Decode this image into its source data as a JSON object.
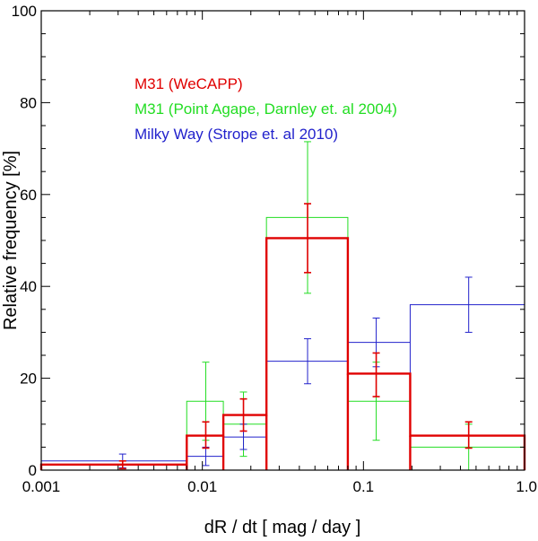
{
  "chart_data": {
    "type": "histogram-step",
    "xscale": "log",
    "xlim": [
      0.001,
      1.0
    ],
    "ylim": [
      0,
      100
    ],
    "xlabel": "dR / dt [ mag / day ]",
    "ylabel": "Relative frequency [%]",
    "x_ticks": [
      {
        "value": 0.001,
        "label": "0.001"
      },
      {
        "value": 0.01,
        "label": "0.01"
      },
      {
        "value": 0.1,
        "label": "0.1"
      },
      {
        "value": 1.0,
        "label": "1.0"
      }
    ],
    "y_ticks": [
      {
        "value": 0,
        "label": "0"
      },
      {
        "value": 20,
        "label": "20"
      },
      {
        "value": 40,
        "label": "40"
      },
      {
        "value": 60,
        "label": "60"
      },
      {
        "value": 80,
        "label": "80"
      },
      {
        "value": 100,
        "label": "100"
      }
    ],
    "series": [
      {
        "name": "M31 (WeCAPP)",
        "label": "M31 (WeCAPP)",
        "color": "#e00000",
        "bins": [
          {
            "lo": 0.001,
            "hi": 0.008,
            "value": 1.2,
            "x": 0.0032,
            "err_lo": 0.3,
            "err_hi": 2.0
          },
          {
            "lo": 0.008,
            "hi": 0.0135,
            "value": 7.5,
            "x": 0.0105,
            "err_lo": 4.8,
            "err_hi": 10.5
          },
          {
            "lo": 0.0135,
            "hi": 0.025,
            "value": 12.0,
            "x": 0.018,
            "err_lo": 8.5,
            "err_hi": 15.5
          },
          {
            "lo": 0.025,
            "hi": 0.08,
            "value": 50.5,
            "x": 0.045,
            "err_lo": 43.0,
            "err_hi": 58.0
          },
          {
            "lo": 0.08,
            "hi": 0.195,
            "value": 21.0,
            "x": 0.12,
            "err_lo": 16.0,
            "err_hi": 25.5
          },
          {
            "lo": 0.195,
            "hi": 1.0,
            "value": 7.5,
            "x": 0.45,
            "err_lo": 4.8,
            "err_hi": 10.5
          }
        ]
      },
      {
        "name": "M31 (Point Agape, Darnley et. al 2004)",
        "label": "M31 (Point Agape, Darnley et. al 2004)",
        "color": "#22dd22",
        "bins": [
          {
            "lo": 0.001,
            "hi": 0.008,
            "value": 1.2,
            "x": 0.0032,
            "err_lo": 0.3,
            "err_hi": 2.0
          },
          {
            "lo": 0.008,
            "hi": 0.0135,
            "value": 15.0,
            "x": 0.0105,
            "err_lo": 6.5,
            "err_hi": 23.5
          },
          {
            "lo": 0.0135,
            "hi": 0.025,
            "value": 10.0,
            "x": 0.018,
            "err_lo": 3.0,
            "err_hi": 17.0
          },
          {
            "lo": 0.025,
            "hi": 0.08,
            "value": 55.0,
            "x": 0.045,
            "err_lo": 38.5,
            "err_hi": 71.5
          },
          {
            "lo": 0.08,
            "hi": 0.195,
            "value": 15.0,
            "x": 0.12,
            "err_lo": 6.5,
            "err_hi": 23.5
          },
          {
            "lo": 0.195,
            "hi": 1.0,
            "value": 5.0,
            "x": 0.45,
            "err_lo": 0.0,
            "err_hi": 10.0
          }
        ]
      },
      {
        "name": "Milky Way (Strope et. al 2010)",
        "label": "Milky Way (Strope et. al 2010)",
        "color": "#2222cc",
        "bins": [
          {
            "lo": 0.001,
            "hi": 0.008,
            "value": 2.0,
            "x": 0.0032,
            "err_lo": 0.5,
            "err_hi": 3.5
          },
          {
            "lo": 0.008,
            "hi": 0.0135,
            "value": 3.0,
            "x": 0.0105,
            "err_lo": 1.0,
            "err_hi": 5.0
          },
          {
            "lo": 0.0135,
            "hi": 0.025,
            "value": 7.2,
            "x": 0.018,
            "err_lo": 4.5,
            "err_hi": 10.0
          },
          {
            "lo": 0.025,
            "hi": 0.08,
            "value": 23.7,
            "x": 0.045,
            "err_lo": 18.8,
            "err_hi": 28.6
          },
          {
            "lo": 0.08,
            "hi": 0.195,
            "value": 27.8,
            "x": 0.12,
            "err_lo": 22.5,
            "err_hi": 33.1
          },
          {
            "lo": 0.195,
            "hi": 1.0,
            "value": 36.0,
            "x": 0.45,
            "err_lo": 30.0,
            "err_hi": 42.0
          }
        ]
      }
    ]
  }
}
